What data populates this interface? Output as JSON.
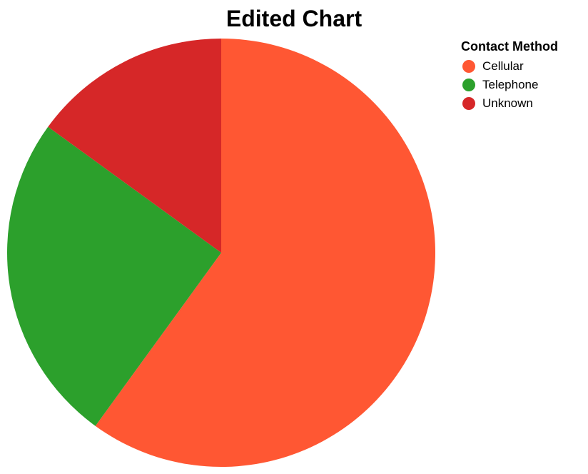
{
  "chart_data": {
    "type": "pie",
    "title": "Edited Chart",
    "categories": [
      "Cellular",
      "Telephone",
      "Unknown"
    ],
    "values": [
      60,
      25,
      15
    ],
    "colors": [
      "#FF5733",
      "#2CA02C",
      "#D62728"
    ],
    "legend": {
      "title": "Contact Method",
      "placement": "top-right"
    }
  }
}
